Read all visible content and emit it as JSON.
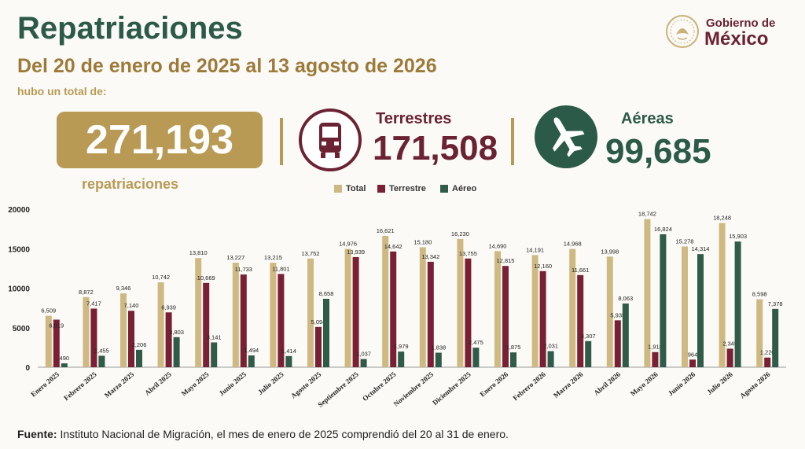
{
  "header": {
    "title": "Repatriaciones",
    "subtitle": "Del 20 de enero de 2025 al 13 agosto de 2026",
    "intro": "hubo un total de:"
  },
  "logo": {
    "line1": "Gobierno de",
    "line2": "México"
  },
  "kpis": {
    "total_value": "271,193",
    "total_label": "repatriaciones",
    "terrestres_label": "Terrestres",
    "terrestres_value": "171,508",
    "aereas_label": "Aéreas",
    "aereas_value": "99,685",
    "bus_icon": "bus-icon",
    "plane_icon": "airplane-icon"
  },
  "colors": {
    "total": "#cfb983",
    "terrestre": "#7a2035",
    "aereo": "#2f5b48",
    "green": "#2c5a48",
    "gold": "#b89a55",
    "maroon": "#6b2233"
  },
  "footer": {
    "source_label": "Fuente:",
    "source_text": " Instituto Nacional de Migración, el mes de enero de 2025 comprendió del 20 al 31 de enero."
  },
  "chart_data": {
    "type": "bar",
    "categories": [
      "Enero 2025",
      "Febrero 2025",
      "Marzo 2025",
      "Abril 2025",
      "Mayo 2025",
      "Junio 2025",
      "Julio 2025",
      "Agosto 2025",
      "Septiembre 2025",
      "Octubre 2025",
      "Noviembre 2025",
      "Diciembre 2025",
      "Enero 2026",
      "Febrero 2026",
      "Marzo 2026",
      "Abril 2026",
      "Mayo 2026",
      "Junio 2026",
      "Julio 2026",
      "Agosto 2026"
    ],
    "series": [
      {
        "name": "Total",
        "values": [
          6509,
          8872,
          9346,
          10742,
          13810,
          13227,
          13215,
          13752,
          14976,
          16621,
          15180,
          16230,
          14690,
          14191,
          14968,
          13998,
          18742,
          15278,
          18248,
          8598
        ]
      },
      {
        "name": "Terrestre",
        "values": [
          6019,
          7417,
          7140,
          6939,
          10669,
          11733,
          11801,
          5094,
          13939,
          14642,
          13342,
          13755,
          12815,
          12160,
          11661,
          5935,
          1918,
          964,
          2345,
          1220
        ]
      },
      {
        "name": "Aéreo",
        "values": [
          490,
          1455,
          2206,
          3803,
          3141,
          1494,
          1414,
          8658,
          1037,
          1979,
          1838,
          2475,
          1875,
          2031,
          3307,
          8063,
          16824,
          14314,
          15903,
          7378
        ]
      }
    ],
    "yticks": [
      "0",
      "5000",
      "10000",
      "15000",
      "20000"
    ],
    "ylim": [
      0,
      20000
    ],
    "legend_position": "top-center",
    "grid": false
  }
}
